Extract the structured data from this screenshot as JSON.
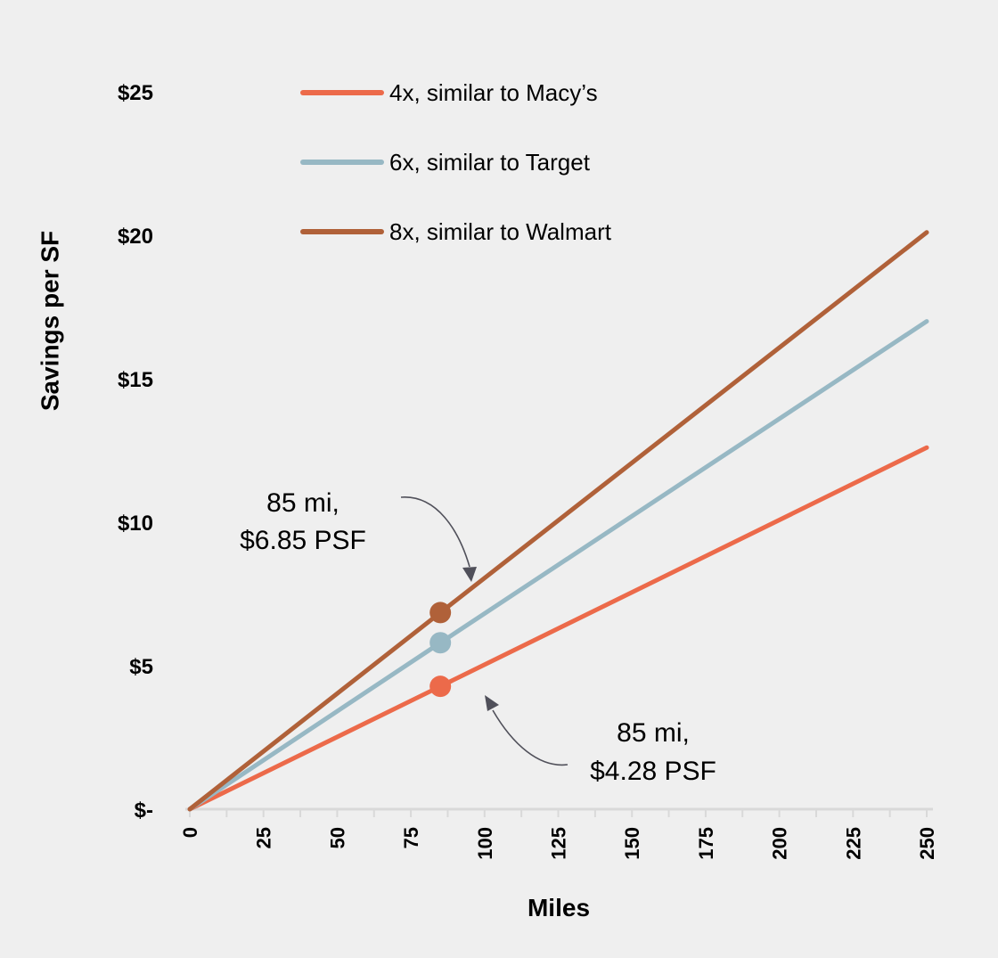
{
  "chart_data": {
    "type": "line",
    "title": "",
    "xlabel": "Miles",
    "ylabel": "Savings per SF",
    "xlim": [
      0,
      250
    ],
    "ylim": [
      0,
      25
    ],
    "grid": false,
    "legend_position": "top-left-inside",
    "x_ticks": [
      0,
      25,
      50,
      75,
      100,
      125,
      150,
      175,
      200,
      225,
      250
    ],
    "x_tick_labels": [
      "0",
      "25",
      "50",
      "75",
      "100",
      "125",
      "150",
      "175",
      "200",
      "225",
      "250"
    ],
    "y_ticks": [
      0,
      5,
      10,
      15,
      20,
      25
    ],
    "y_tick_labels": [
      "$-",
      "$5",
      "$10",
      "$15",
      "$20",
      "$25"
    ],
    "x": [
      0,
      85,
      250
    ],
    "series": [
      {
        "name": "4x, similar to Macy’s",
        "color": "#ec6a4a",
        "values": [
          0,
          4.28,
          12.6
        ],
        "marker_at": 85,
        "marker_value": 4.28
      },
      {
        "name": "6x, similar to Target",
        "color": "#97b8c4",
        "values": [
          0,
          5.8,
          17.0
        ],
        "marker_at": 85,
        "marker_value": 5.8
      },
      {
        "name": "8x, similar to Walmart",
        "color": "#b06139",
        "values": [
          0,
          6.85,
          20.1
        ],
        "marker_at": 85,
        "marker_value": 6.85
      }
    ],
    "annotations": [
      {
        "lines": [
          "85 mi,",
          "$6.85 PSF"
        ],
        "target_series": "8x, similar to Walmart",
        "x": 85,
        "y": 6.85
      },
      {
        "lines": [
          "85 mi,",
          "$4.28 PSF"
        ],
        "target_series": "4x, similar to Macy’s",
        "x": 85,
        "y": 4.28
      }
    ]
  },
  "colors": {
    "background": "#efefef",
    "axis": "#d9d9d9",
    "arrow": "#50505a",
    "text": "#000000"
  }
}
